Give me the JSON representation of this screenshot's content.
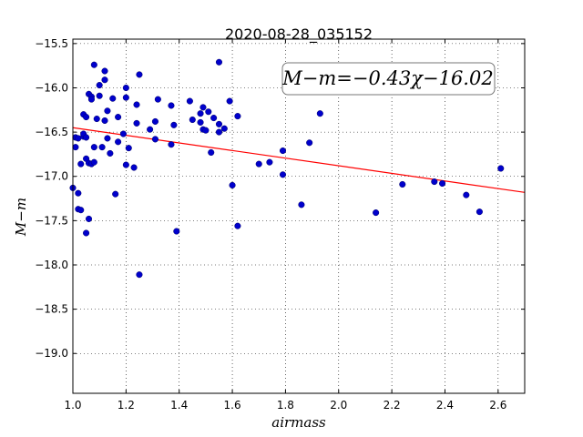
{
  "chart_data": {
    "type": "scatter",
    "title": "2020-08-28_035152",
    "xlabel": "airmass",
    "ylabel": "M−m",
    "xlim": [
      1.0,
      2.7
    ],
    "ylim": [
      -19.45,
      -15.45
    ],
    "y_inverted": true,
    "grid": true,
    "grid_style": "dotted",
    "xticks": [
      "1.0",
      "1.2",
      "1.4",
      "1.6",
      "1.8",
      "2.0",
      "2.2",
      "2.4",
      "2.6"
    ],
    "yticks": [
      "−15.5",
      "−16.0",
      "−16.5",
      "−17.0",
      "−17.5",
      "−18.0",
      "−18.5",
      "−19.0"
    ],
    "annotation": "M−m=−0.43χ−16.02",
    "annotation_position": "top-right",
    "fit_line": {
      "slope": -0.43,
      "intercept": -16.02,
      "color": "#ff0000"
    },
    "marker_color": "#0000cc",
    "points": [
      [
        1.0,
        -17.13
      ],
      [
        1.01,
        -16.67
      ],
      [
        1.01,
        -16.56
      ],
      [
        1.02,
        -17.19
      ],
      [
        1.02,
        -16.57
      ],
      [
        1.02,
        -17.37
      ],
      [
        1.03,
        -17.38
      ],
      [
        1.03,
        -16.86
      ],
      [
        1.04,
        -16.55
      ],
      [
        1.04,
        -16.52
      ],
      [
        1.04,
        -16.3
      ],
      [
        1.05,
        -16.8
      ],
      [
        1.05,
        -16.33
      ],
      [
        1.05,
        -16.56
      ],
      [
        1.05,
        -17.64
      ],
      [
        1.06,
        -16.07
      ],
      [
        1.06,
        -17.48
      ],
      [
        1.06,
        -16.85
      ],
      [
        1.07,
        -16.1
      ],
      [
        1.07,
        -16.13
      ],
      [
        1.07,
        -16.86
      ],
      [
        1.08,
        -15.74
      ],
      [
        1.08,
        -16.84
      ],
      [
        1.08,
        -16.67
      ],
      [
        1.09,
        -16.35
      ],
      [
        1.1,
        -15.97
      ],
      [
        1.1,
        -16.09
      ],
      [
        1.11,
        -16.67
      ],
      [
        1.12,
        -15.81
      ],
      [
        1.12,
        -15.91
      ],
      [
        1.12,
        -16.37
      ],
      [
        1.13,
        -16.26
      ],
      [
        1.13,
        -16.57
      ],
      [
        1.14,
        -16.74
      ],
      [
        1.15,
        -16.12
      ],
      [
        1.16,
        -17.2
      ],
      [
        1.17,
        -16.33
      ],
      [
        1.17,
        -16.61
      ],
      [
        1.19,
        -16.52
      ],
      [
        1.2,
        -16.0
      ],
      [
        1.2,
        -16.11
      ],
      [
        1.2,
        -16.87
      ],
      [
        1.21,
        -16.68
      ],
      [
        1.23,
        -16.9
      ],
      [
        1.24,
        -16.19
      ],
      [
        1.24,
        -16.4
      ],
      [
        1.25,
        -15.85
      ],
      [
        1.25,
        -18.11
      ],
      [
        1.29,
        -16.47
      ],
      [
        1.31,
        -16.38
      ],
      [
        1.31,
        -16.58
      ],
      [
        1.32,
        -16.13
      ],
      [
        1.37,
        -16.64
      ],
      [
        1.37,
        -16.2
      ],
      [
        1.38,
        -16.42
      ],
      [
        1.39,
        -17.62
      ],
      [
        1.44,
        -16.15
      ],
      [
        1.45,
        -16.36
      ],
      [
        1.48,
        -16.39
      ],
      [
        1.48,
        -16.29
      ],
      [
        1.49,
        -16.22
      ],
      [
        1.49,
        -16.47
      ],
      [
        1.5,
        -16.48
      ],
      [
        1.51,
        -16.27
      ],
      [
        1.52,
        -16.73
      ],
      [
        1.53,
        -16.34
      ],
      [
        1.55,
        -16.5
      ],
      [
        1.55,
        -16.41
      ],
      [
        1.55,
        -15.71
      ],
      [
        1.57,
        -16.46
      ],
      [
        1.59,
        -16.15
      ],
      [
        1.6,
        -17.1
      ],
      [
        1.62,
        -17.56
      ],
      [
        1.62,
        -16.32
      ],
      [
        1.7,
        -16.86
      ],
      [
        1.74,
        -16.84
      ],
      [
        1.79,
        -16.71
      ],
      [
        1.79,
        -16.98
      ],
      [
        1.86,
        -17.32
      ],
      [
        1.89,
        -16.62
      ],
      [
        1.93,
        -16.29
      ],
      [
        2.14,
        -17.41
      ],
      [
        2.24,
        -17.09
      ],
      [
        2.36,
        -17.06
      ],
      [
        2.39,
        -17.08
      ],
      [
        2.48,
        -17.21
      ],
      [
        2.53,
        -17.4
      ],
      [
        2.61,
        -16.91
      ]
    ]
  }
}
